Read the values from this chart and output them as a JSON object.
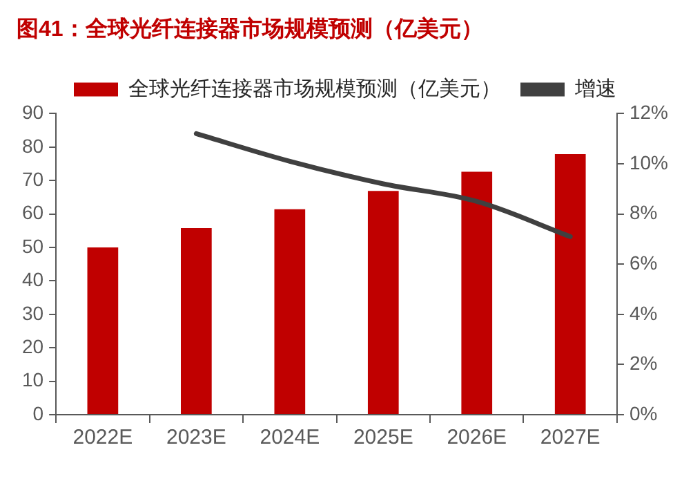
{
  "chart_data": {
    "type": "bar",
    "title": "图41：全球光纤连接器市场规模预测（亿美元）",
    "categories": [
      "2022E",
      "2023E",
      "2024E",
      "2025E",
      "2026E",
      "2027E"
    ],
    "series": [
      {
        "name": "全球光纤连接器市场规模预测（亿美元）",
        "color": "#c00000",
        "values": [
          50,
          55.8,
          61.4,
          66.9,
          72.6,
          77.9
        ]
      },
      {
        "name": "增速",
        "type": "line",
        "axis": "y2",
        "color": "#404040",
        "values": [
          null,
          11.2,
          10.1,
          9.2,
          8.5,
          7.1
        ]
      }
    ],
    "ylim": [
      0,
      90
    ],
    "yticks": [
      0,
      10,
      20,
      30,
      40,
      50,
      60,
      70,
      80,
      90
    ],
    "y2lim": [
      0,
      12
    ],
    "y2ticks": [
      {
        "value": 0,
        "label": "0%"
      },
      {
        "value": 2,
        "label": "2%"
      },
      {
        "value": 4,
        "label": "4%"
      },
      {
        "value": 6,
        "label": "6%"
      },
      {
        "value": 8,
        "label": "8%"
      },
      {
        "value": 10,
        "label": "10%"
      },
      {
        "value": 12,
        "label": "12%"
      }
    ],
    "grid": false,
    "legend": "top",
    "marker": "none"
  }
}
